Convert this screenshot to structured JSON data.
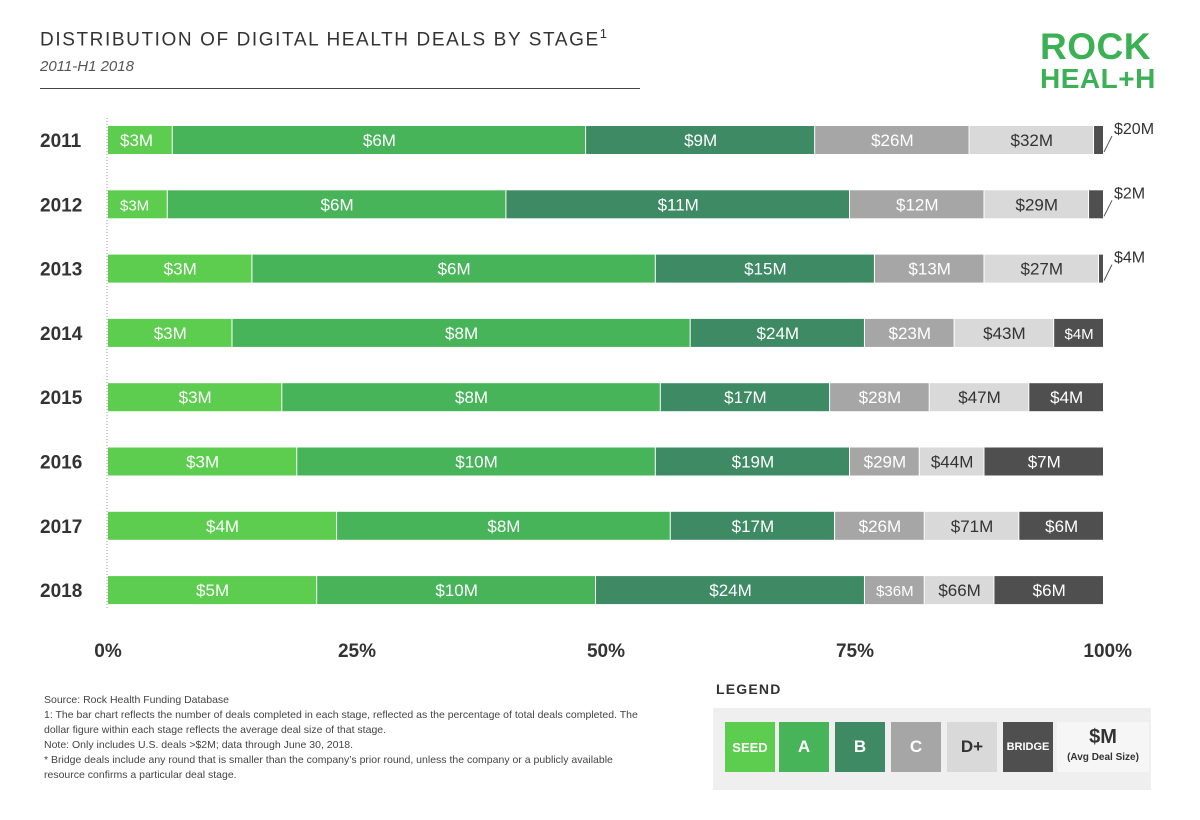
{
  "header": {
    "title": "DISTRIBUTION OF DIGITAL HEALTH DEALS BY STAGE",
    "title_superscript": "1",
    "subtitle": "2011-H1 2018"
  },
  "logo": {
    "line1": "ROCK",
    "line2": "HEAL+H"
  },
  "colors": {
    "SEED": "#5ccd4f",
    "A": "#47b45a",
    "B": "#3d8a64",
    "C": "#a6a6a6",
    "D+": "#d9d9d9",
    "BRIDGE": "#4f4f4f"
  },
  "chart_data": {
    "type": "bar",
    "orientation": "horizontal",
    "stacked": true,
    "percent": true,
    "categories": [
      "2011",
      "2012",
      "2013",
      "2014",
      "2015",
      "2016",
      "2017",
      "2018"
    ],
    "x_ticks": [
      "0%",
      "25%",
      "50%",
      "75%",
      "100%"
    ],
    "xlim": [
      0,
      100
    ],
    "series": [
      {
        "name": "SEED",
        "values": [
          6.5,
          6.0,
          14.5,
          12.5,
          17.5,
          19.0,
          23.0,
          21.0
        ],
        "labels": [
          "$3M",
          "$3M",
          "$3M",
          "$3M",
          "$3M",
          "$3M",
          "$4M",
          "$5M"
        ]
      },
      {
        "name": "A",
        "values": [
          41.5,
          34.0,
          40.5,
          46.0,
          38.0,
          36.0,
          33.5,
          28.0
        ],
        "labels": [
          "$6M",
          "$6M",
          "$6M",
          "$8M",
          "$8M",
          "$10M",
          "$8M",
          "$10M"
        ]
      },
      {
        "name": "B",
        "values": [
          23.0,
          34.5,
          22.0,
          17.5,
          17.0,
          19.5,
          16.5,
          27.0
        ],
        "labels": [
          "$9M",
          "$11M",
          "$15M",
          "$24M",
          "$17M",
          "$19M",
          "$17M",
          "$24M"
        ]
      },
      {
        "name": "C",
        "values": [
          15.5,
          13.5,
          11.0,
          9.0,
          10.0,
          7.0,
          9.0,
          6.0
        ],
        "labels": [
          "$26M",
          "$12M",
          "$13M",
          "$23M",
          "$28M",
          "$29M",
          "$26M",
          "$36M"
        ]
      },
      {
        "name": "D+",
        "values": [
          12.5,
          10.5,
          11.5,
          10.0,
          10.0,
          6.5,
          9.5,
          7.0
        ],
        "labels": [
          "$32M",
          "$29M",
          "$27M",
          "$43M",
          "$47M",
          "$44M",
          "$71M",
          "$66M"
        ]
      },
      {
        "name": "BRIDGE",
        "values": [
          1.0,
          1.5,
          0.5,
          5.0,
          7.5,
          12.0,
          8.5,
          11.0
        ],
        "labels": [
          "$20M",
          "$2M",
          "$4M",
          "$4M",
          "$4M",
          "$7M",
          "$6M",
          "$6M"
        ]
      }
    ]
  },
  "notes": [
    "Source: Rock Health Funding Database",
    "1: The bar chart reflects the number of deals completed in each stage, reflected as the percentage of total deals completed. The dollar figure within each stage reflects the average deal size of that stage.",
    "Note: Only includes U.S. deals >$2M; data through June 30, 2018.",
    "* Bridge deals include any round that is smaller than the company’s prior round, unless the company or a publicly available resource confirms a particular deal stage."
  ],
  "legend": {
    "title": "LEGEND",
    "items": [
      {
        "key": "SEED",
        "label": "SEED"
      },
      {
        "key": "A",
        "label": "A"
      },
      {
        "key": "B",
        "label": "B"
      },
      {
        "key": "C",
        "label": "C"
      },
      {
        "key": "D+",
        "label": "D+"
      },
      {
        "key": "BRIDGE",
        "label": "BRIDGE"
      }
    ],
    "unit_main": "$M",
    "unit_sub": "(Avg Deal Size)"
  }
}
